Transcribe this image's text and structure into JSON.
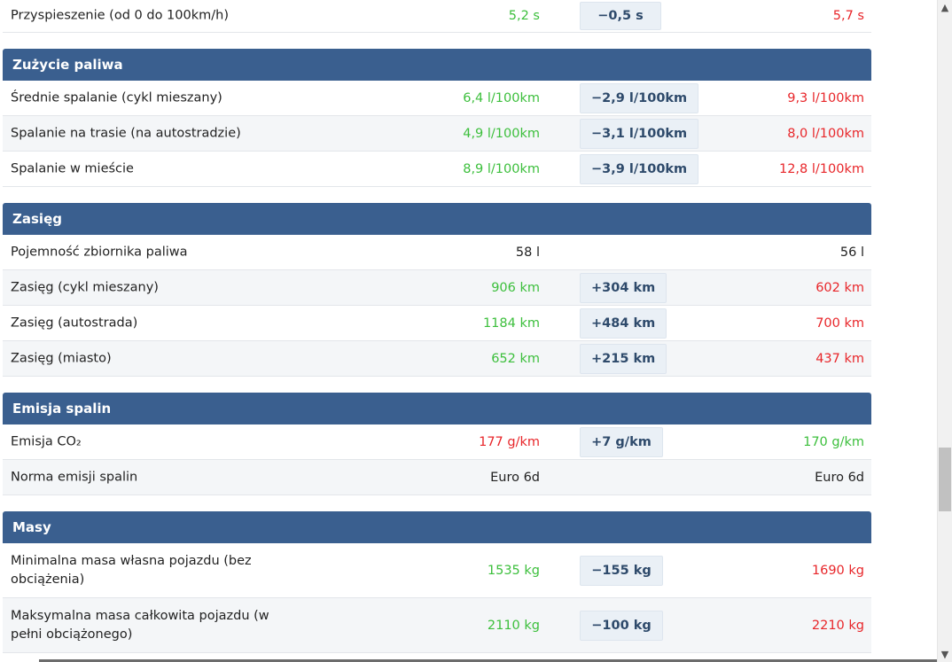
{
  "top_row": {
    "label": "Przyspieszenie (od 0 do 100km/h)",
    "v1": "5,2 s",
    "diff": "−0,5 s",
    "v2": "5,7 s"
  },
  "sections": {
    "fuel": {
      "title": "Zużycie paliwa",
      "rows": [
        {
          "label": "Średnie spalanie (cykl mieszany)",
          "v1": "6,4 l/100km",
          "diff": "−2,9 l/100km",
          "v2": "9,3 l/100km"
        },
        {
          "label": "Spalanie na trasie (na autostradzie)",
          "v1": "4,9 l/100km",
          "diff": "−3,1 l/100km",
          "v2": "8,0 l/100km"
        },
        {
          "label": "Spalanie w mieście",
          "v1": "8,9 l/100km",
          "diff": "−3,9 l/100km",
          "v2": "12,8 l/100km"
        }
      ]
    },
    "range": {
      "title": "Zasięg",
      "rows": [
        {
          "label": "Pojemność zbiornika paliwa",
          "v1": "58 l",
          "diff": "",
          "v2": "56 l"
        },
        {
          "label": "Zasięg (cykl mieszany)",
          "v1": "906 km",
          "diff": "+304 km",
          "v2": "602 km"
        },
        {
          "label": "Zasięg (autostrada)",
          "v1": "1184 km",
          "diff": "+484 km",
          "v2": "700 km"
        },
        {
          "label": "Zasięg (miasto)",
          "v1": "652 km",
          "diff": "+215 km",
          "v2": "437 km"
        }
      ]
    },
    "emission": {
      "title": "Emisja spalin",
      "rows": [
        {
          "label": "Emisja CO₂",
          "v1": "177 g/km",
          "diff": "+7 g/km",
          "v2": "170 g/km"
        },
        {
          "label": "Norma emisji spalin",
          "v1": "Euro 6d",
          "diff": "",
          "v2": "Euro 6d"
        }
      ]
    },
    "mass": {
      "title": "Masy",
      "rows": [
        {
          "label": "Minimalna masa własna pojazdu (bez obciążenia)",
          "v1": "1535 kg",
          "diff": "−155 kg",
          "v2": "1690 kg"
        },
        {
          "label": "Maksymalna masa całkowita pojazdu (w pełni obciążonego)",
          "v1": "2110 kg",
          "diff": "−100 kg",
          "v2": "2210 kg"
        }
      ]
    }
  },
  "colors": {
    "better": "#3cbf3c",
    "worse": "#e8262a",
    "header_bg": "#3a5f8f"
  },
  "scrollbar": {
    "up_icon": "▲",
    "down_icon": "▼"
  }
}
